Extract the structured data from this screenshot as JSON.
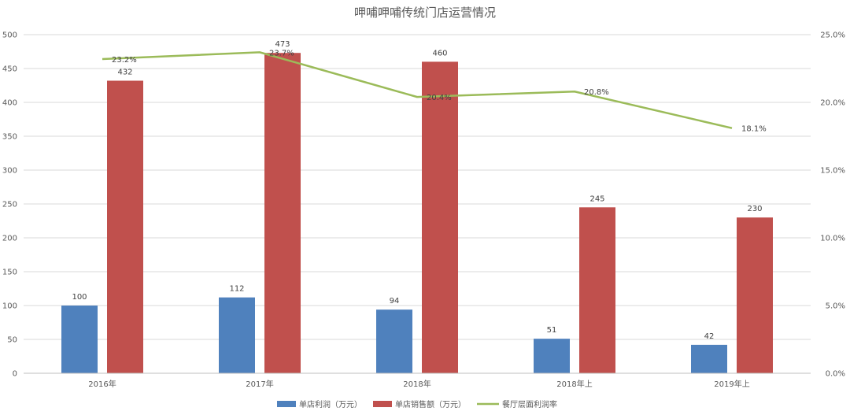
{
  "chart_data": {
    "type": "bar",
    "title": "呷哺呷哺传统门店运营情况",
    "categories": [
      "2016年",
      "2017年",
      "2018年",
      "2018年上",
      "2019年上"
    ],
    "series": [
      {
        "name": "单店利润（万元）",
        "type": "bar",
        "axis": "left",
        "color": "#4f81bd",
        "values": [
          100,
          112,
          94,
          51,
          42
        ],
        "labels": [
          "100",
          "112",
          "94",
          "51",
          "42"
        ]
      },
      {
        "name": "单店销售额（万元）",
        "type": "bar",
        "axis": "left",
        "color": "#c0504d",
        "values": [
          432,
          473,
          460,
          245,
          230
        ],
        "labels": [
          "432",
          "473",
          "460",
          "245",
          "230"
        ]
      },
      {
        "name": "餐厅层面利润率",
        "type": "line",
        "axis": "right",
        "color": "#9bbb59",
        "values": [
          23.2,
          23.7,
          20.4,
          20.8,
          18.1
        ],
        "labels": [
          "23.2%",
          "23.7%",
          "20.4%",
          "20.8%",
          "18.1%"
        ]
      }
    ],
    "y_left": {
      "min": 0,
      "max": 500,
      "ticks": [
        "0",
        "50",
        "100",
        "150",
        "200",
        "250",
        "300",
        "350",
        "400",
        "450",
        "500"
      ]
    },
    "y_right": {
      "min": 0,
      "max": 25,
      "ticks": [
        "0.0%",
        "5.0%",
        "10.0%",
        "15.0%",
        "20.0%",
        "25.0%"
      ]
    },
    "grid": true,
    "legend_position": "bottom"
  }
}
